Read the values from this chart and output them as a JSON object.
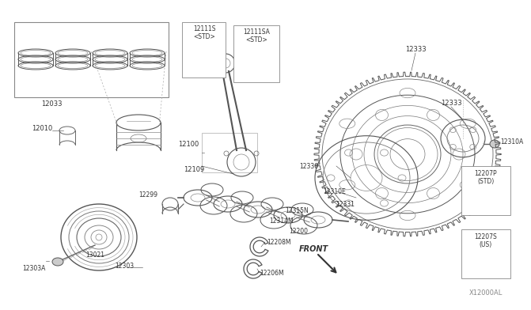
{
  "background_color": "#ffffff",
  "line_color": "#444444",
  "label_color": "#333333",
  "font_size": 5.5,
  "watermark": "X12000AL",
  "parts": {
    "12033": "12033",
    "12010": "12010",
    "12100": "12100",
    "12109": "12109",
    "12299": "12299",
    "13021": "13021",
    "12303": "12303",
    "12303A": "12303A",
    "12200": "12200",
    "12314M": "12314M",
    "12315N": "12315N",
    "12208M": "12208M",
    "12206M": "12206M",
    "12330": "12330",
    "12310E": "12310E",
    "12331": "12331",
    "12333": "12333",
    "12310A": "12310A",
    "12111S": "12111S\n<STD>",
    "12111SA": "12111SA\n<STD>",
    "12207P": "12207P\n(STD)",
    "12207S": "12207S\n(US)"
  }
}
